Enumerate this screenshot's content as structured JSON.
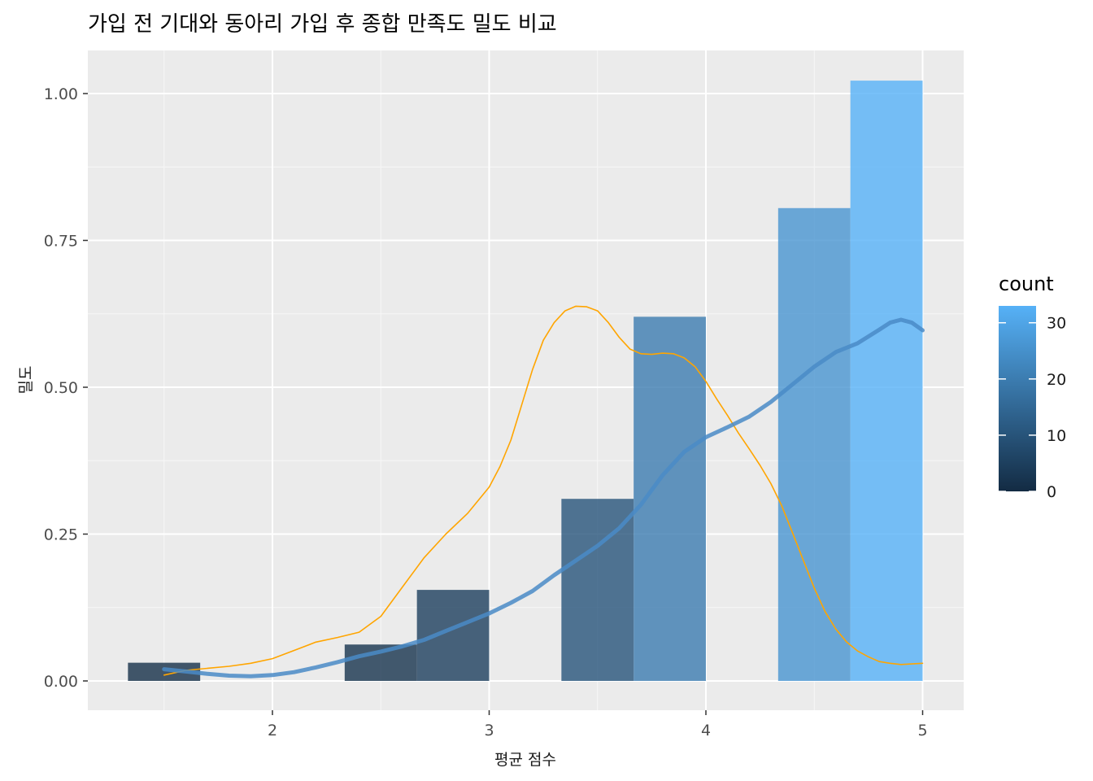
{
  "chart_data": {
    "type": "bar",
    "title": "가입 전 기대와 동아리 가입 후 종합 만족도 밀도 비교",
    "xlabel": "평균 점수",
    "ylabel": "밀도",
    "xlim": [
      1.28,
      5.32
    ],
    "ylim": [
      -0.05,
      1.07
    ],
    "x_ticks": [
      2,
      3,
      4,
      5
    ],
    "x_tick_labels": [
      "2",
      "3",
      "4",
      "5"
    ],
    "y_ticks": [
      0,
      0.25,
      0.5,
      0.75,
      1.0
    ],
    "y_tick_labels": [
      "0.00",
      "0.25",
      "0.50",
      "0.75",
      "1.00"
    ],
    "grid": true,
    "bin_width": 0.3333,
    "histogram": {
      "x": [
        1.5,
        2.5,
        2.8333,
        3.5,
        3.8333,
        4.5,
        4.8333
      ],
      "density": [
        0.031,
        0.062,
        0.155,
        0.31,
        0.62,
        0.805,
        1.022
      ],
      "count": [
        1,
        2,
        5,
        10,
        20,
        26,
        33
      ]
    },
    "density_curves": [
      {
        "color": "#ffa500",
        "x": [
          1.5,
          1.6,
          1.8,
          1.9,
          2.0,
          2.1,
          2.2,
          2.3,
          2.4,
          2.5,
          2.6,
          2.7,
          2.8,
          2.9,
          3.0,
          3.05,
          3.1,
          3.15,
          3.2,
          3.25,
          3.3,
          3.35,
          3.4,
          3.45,
          3.5,
          3.55,
          3.6,
          3.65,
          3.7,
          3.75,
          3.8,
          3.85,
          3.9,
          3.95,
          4.0,
          4.05,
          4.1,
          4.15,
          4.2,
          4.25,
          4.3,
          4.35,
          4.4,
          4.45,
          4.5,
          4.55,
          4.6,
          4.65,
          4.7,
          4.75,
          4.8,
          4.85,
          4.9,
          5.0
        ],
        "y": [
          0.01,
          0.018,
          0.025,
          0.03,
          0.038,
          0.052,
          0.066,
          0.074,
          0.083,
          0.11,
          0.16,
          0.21,
          0.25,
          0.285,
          0.33,
          0.365,
          0.41,
          0.47,
          0.53,
          0.58,
          0.61,
          0.63,
          0.638,
          0.637,
          0.63,
          0.61,
          0.585,
          0.565,
          0.557,
          0.556,
          0.558,
          0.557,
          0.55,
          0.535,
          0.51,
          0.48,
          0.452,
          0.422,
          0.395,
          0.367,
          0.336,
          0.298,
          0.252,
          0.205,
          0.158,
          0.118,
          0.088,
          0.066,
          0.051,
          0.041,
          0.033,
          0.03,
          0.028,
          0.03
        ]
      },
      {
        "color": "#4a8bc7",
        "x": [
          1.5,
          1.6,
          1.7,
          1.8,
          1.9,
          2.0,
          2.1,
          2.2,
          2.3,
          2.4,
          2.5,
          2.6,
          2.7,
          2.8,
          2.9,
          3.0,
          3.1,
          3.2,
          3.3,
          3.4,
          3.5,
          3.6,
          3.7,
          3.8,
          3.9,
          4.0,
          4.1,
          4.2,
          4.3,
          4.4,
          4.5,
          4.6,
          4.7,
          4.8,
          4.85,
          4.9,
          4.95,
          5.0
        ],
        "y": [
          0.02,
          0.016,
          0.012,
          0.009,
          0.008,
          0.01,
          0.015,
          0.023,
          0.032,
          0.042,
          0.05,
          0.059,
          0.07,
          0.085,
          0.1,
          0.115,
          0.133,
          0.153,
          0.18,
          0.205,
          0.23,
          0.26,
          0.3,
          0.35,
          0.39,
          0.415,
          0.432,
          0.45,
          0.475,
          0.505,
          0.535,
          0.56,
          0.575,
          0.598,
          0.61,
          0.615,
          0.61,
          0.597
        ]
      }
    ],
    "legend": {
      "title": "count",
      "position": "right",
      "range": [
        0,
        33
      ],
      "ticks": [
        0,
        10,
        20,
        30
      ],
      "tick_labels": [
        "0",
        "10",
        "20",
        "30"
      ],
      "color_low": "#132b43",
      "color_high": "#56b1f7"
    },
    "colors": {
      "panel_background": "#ebebeb",
      "grid_line": "#ffffff"
    }
  }
}
